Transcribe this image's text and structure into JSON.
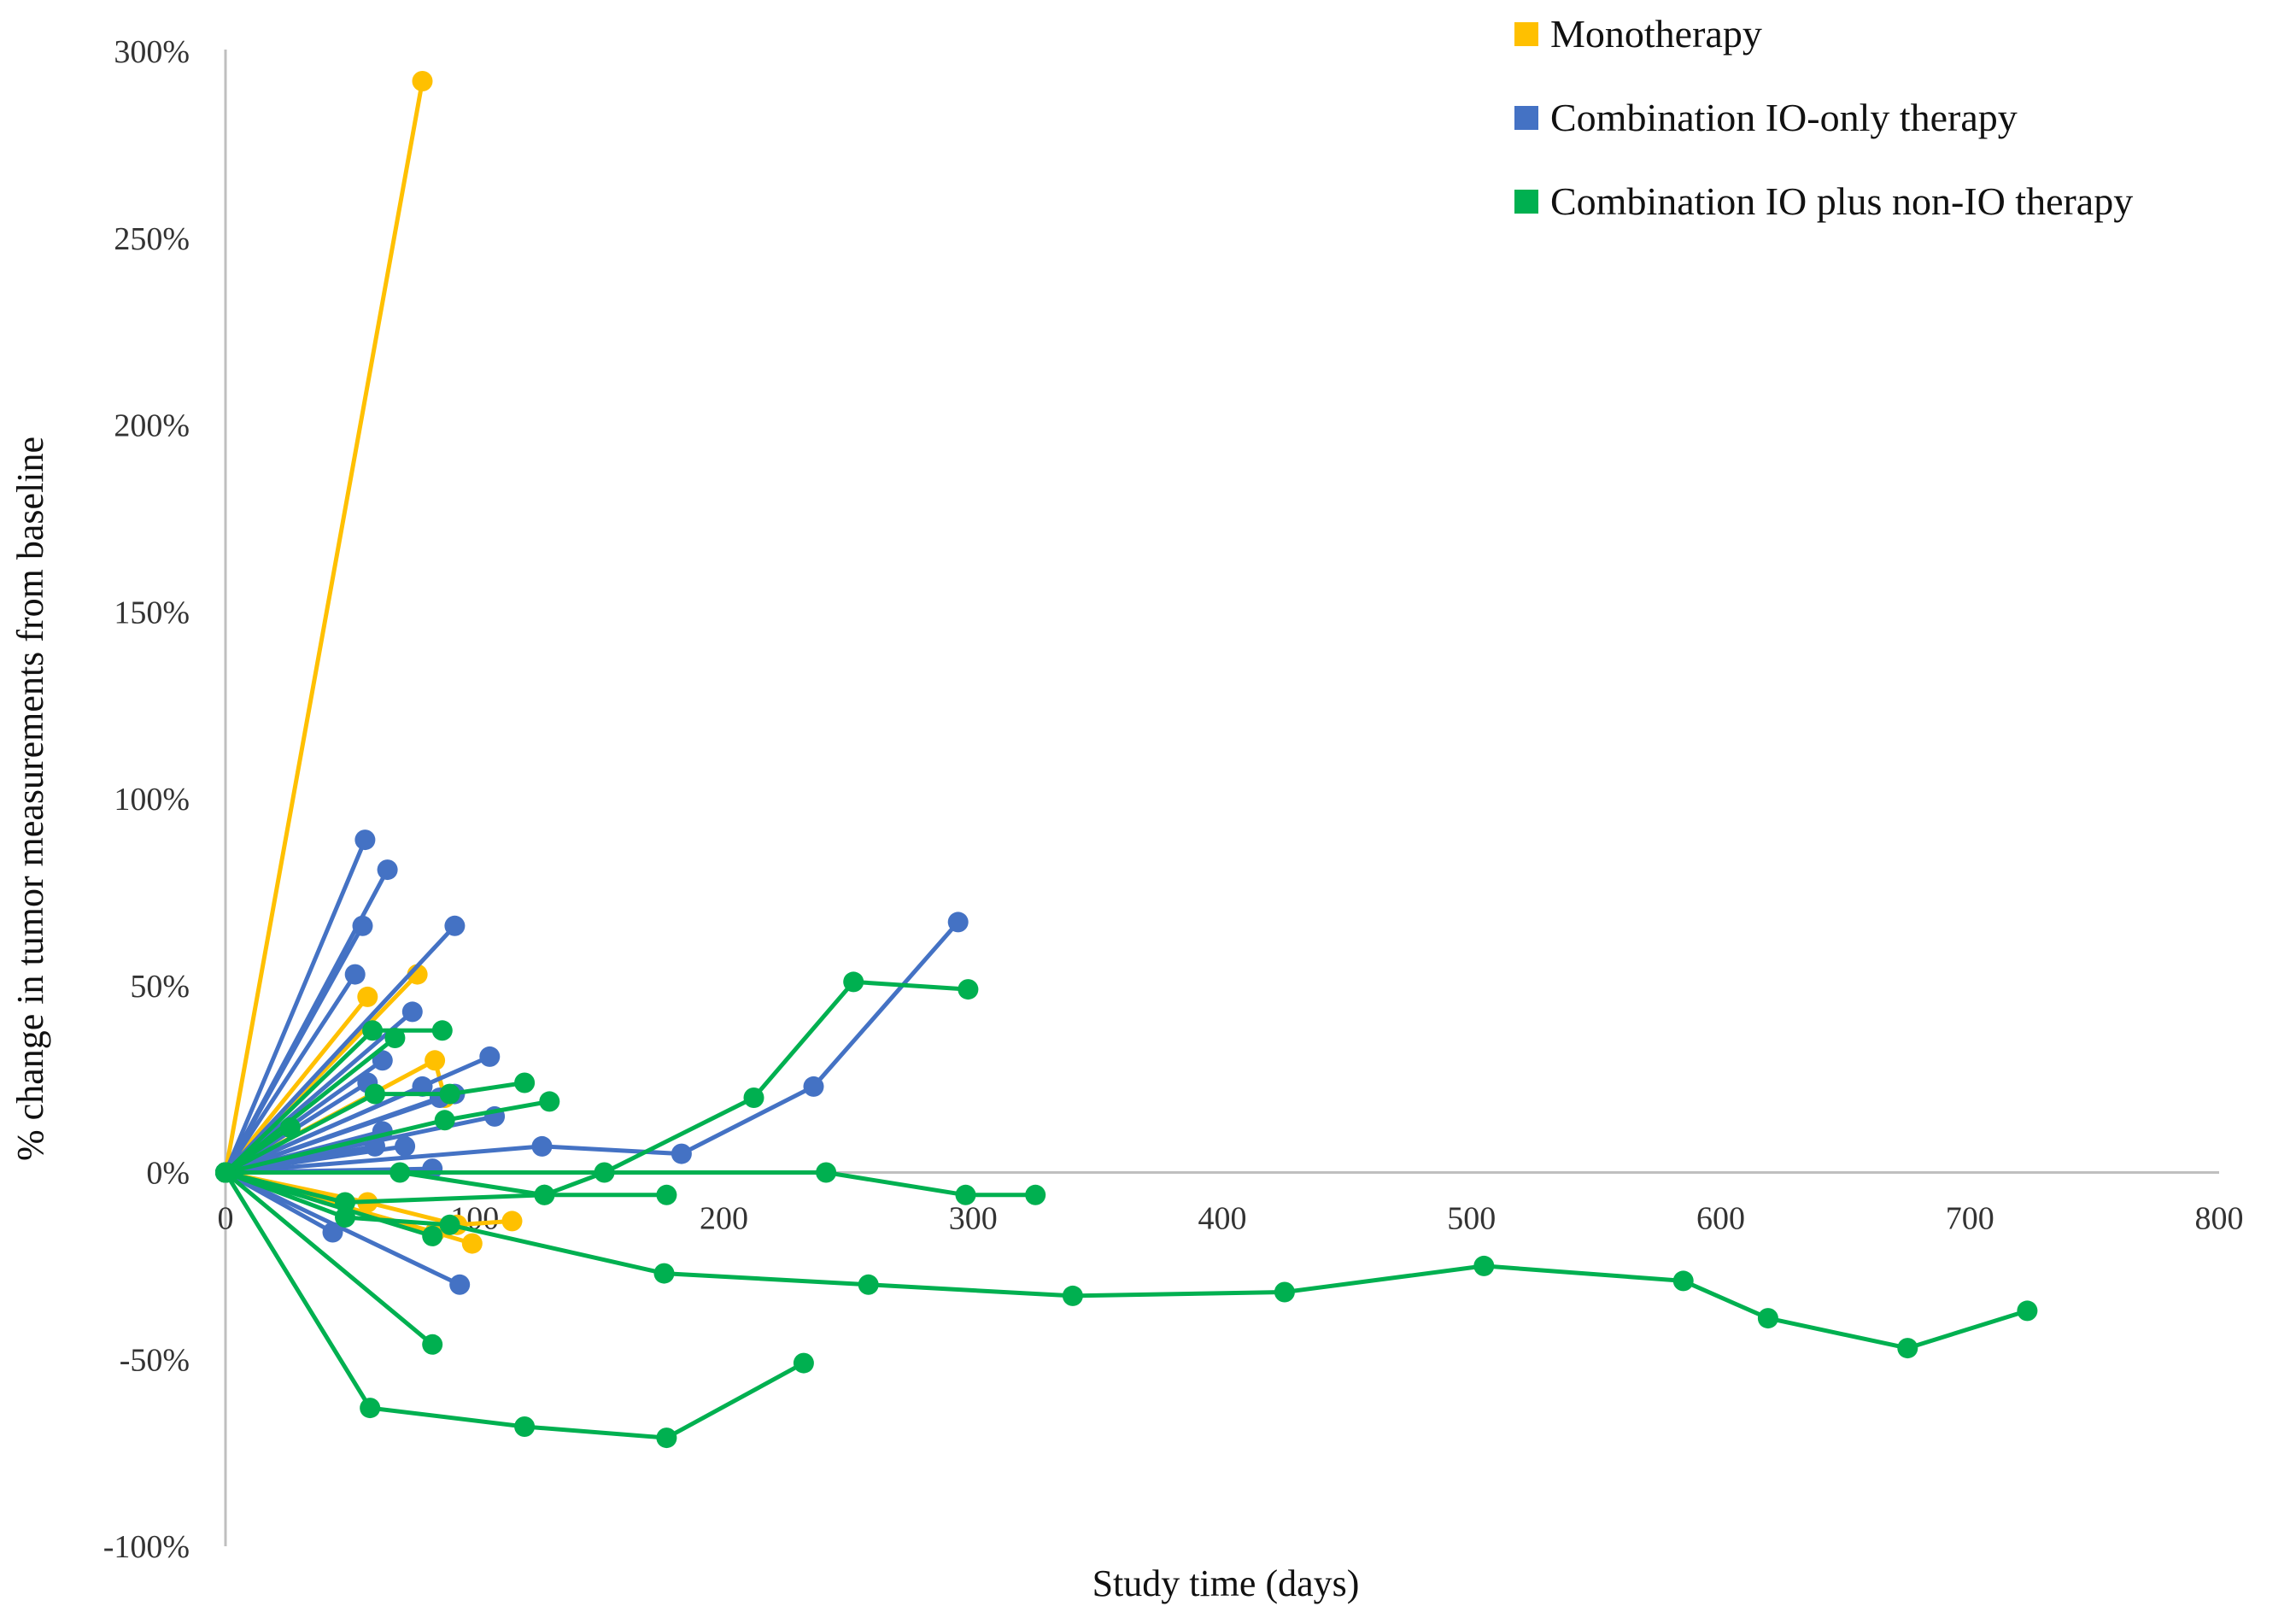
{
  "chart_data": {
    "type": "line",
    "title": "",
    "xlabel": "Study time (days)",
    "ylabel": "% change in tumor measurements from baseline",
    "xlim": [
      0,
      800
    ],
    "ylim": [
      -100,
      300
    ],
    "x_ticks": [
      0,
      100,
      200,
      300,
      400,
      500,
      600,
      700,
      800
    ],
    "y_ticks": [
      300,
      250,
      200,
      150,
      100,
      50,
      0,
      -50,
      -100
    ],
    "y_tick_labels": [
      "300%",
      "250%",
      "200%",
      "150%",
      "100%",
      "50%",
      "0%",
      "-50%",
      "-100%"
    ],
    "grid": false,
    "legend": "top-right",
    "groups": [
      {
        "name": "Monotherapy",
        "color": "#FFC000",
        "series": [
          {
            "points": [
              [
                0,
                0
              ],
              [
                79,
                292
              ]
            ]
          },
          {
            "points": [
              [
                0,
                0
              ],
              [
                77,
                53
              ]
            ]
          },
          {
            "points": [
              [
                0,
                0
              ],
              [
                57,
                47
              ]
            ]
          },
          {
            "points": [
              [
                0,
                0
              ],
              [
                84,
                30
              ],
              [
                88,
                20
              ]
            ]
          },
          {
            "points": [
              [
                0,
                0
              ],
              [
                57,
                -8
              ],
              [
                93,
                -14
              ],
              [
                115,
                -13
              ]
            ]
          },
          {
            "points": [
              [
                0,
                0
              ],
              [
                84,
                -16
              ],
              [
                99,
                -19
              ]
            ]
          }
        ]
      },
      {
        "name": "Combination IO-only therapy",
        "color": "#4472C4",
        "series": [
          {
            "points": [
              [
                0,
                0
              ],
              [
                56,
                89
              ]
            ]
          },
          {
            "points": [
              [
                0,
                0
              ],
              [
                65,
                81
              ]
            ]
          },
          {
            "points": [
              [
                0,
                0
              ],
              [
                55,
                66
              ]
            ]
          },
          {
            "points": [
              [
                0,
                0
              ],
              [
                92,
                66
              ]
            ]
          },
          {
            "points": [
              [
                0,
                0
              ],
              [
                52,
                53
              ]
            ]
          },
          {
            "points": [
              [
                0,
                0
              ],
              [
                75,
                43
              ]
            ]
          },
          {
            "points": [
              [
                0,
                0
              ],
              [
                106,
                31
              ]
            ]
          },
          {
            "points": [
              [
                0,
                0
              ],
              [
                63,
                30
              ]
            ]
          },
          {
            "points": [
              [
                0,
                0
              ],
              [
                57,
                24
              ]
            ]
          },
          {
            "points": [
              [
                0,
                0
              ],
              [
                79,
                23
              ]
            ]
          },
          {
            "points": [
              [
                0,
                0
              ],
              [
                92,
                21
              ]
            ]
          },
          {
            "points": [
              [
                0,
                0
              ],
              [
                86,
                20
              ]
            ]
          },
          {
            "points": [
              [
                0,
                0
              ],
              [
                108,
                15
              ]
            ]
          },
          {
            "points": [
              [
                0,
                0
              ],
              [
                63,
                11
              ]
            ]
          },
          {
            "points": [
              [
                0,
                0
              ],
              [
                60,
                7
              ]
            ]
          },
          {
            "points": [
              [
                0,
                0
              ],
              [
                72,
                7
              ]
            ]
          },
          {
            "points": [
              [
                0,
                0
              ],
              [
                127,
                7
              ],
              [
                183,
                5
              ],
              [
                236,
                23
              ],
              [
                294,
                67
              ]
            ]
          },
          {
            "points": [
              [
                0,
                0
              ],
              [
                83,
                1
              ]
            ]
          },
          {
            "points": [
              [
                0,
                0
              ],
              [
                43,
                -16
              ]
            ]
          },
          {
            "points": [
              [
                0,
                0
              ],
              [
                94,
                -30
              ]
            ]
          }
        ]
      },
      {
        "name": "Combination IO plus non-IO therapy",
        "color": "#00B050",
        "series": [
          {
            "points": [
              [
                0,
                0
              ],
              [
                59,
                38
              ],
              [
                87,
                38
              ]
            ]
          },
          {
            "points": [
              [
                0,
                0
              ],
              [
                68,
                36
              ]
            ]
          },
          {
            "points": [
              [
                0,
                0
              ],
              [
                60,
                21
              ],
              [
                90,
                21
              ],
              [
                120,
                24
              ]
            ]
          },
          {
            "points": [
              [
                0,
                0
              ],
              [
                88,
                14
              ],
              [
                130,
                19
              ]
            ]
          },
          {
            "points": [
              [
                0,
                0
              ],
              [
                26,
                12
              ]
            ]
          },
          {
            "points": [
              [
                0,
                0
              ],
              [
                70,
                0
              ],
              [
                128,
                -6
              ],
              [
                177,
                -6
              ]
            ]
          },
          {
            "points": [
              [
                0,
                0
              ],
              [
                48,
                -8
              ],
              [
                128,
                -6
              ],
              [
                152,
                0
              ],
              [
                212,
                20
              ],
              [
                252,
                51
              ],
              [
                298,
                49
              ]
            ]
          },
          {
            "points": [
              [
                0,
                0
              ],
              [
                241,
                0
              ],
              [
                297,
                -6
              ],
              [
                325,
                -6
              ]
            ]
          },
          {
            "points": [
              [
                0,
                0
              ],
              [
                48,
                -12
              ],
              [
                90,
                -14
              ],
              [
                176,
                -27
              ],
              [
                258,
                -30
              ],
              [
                340,
                -33
              ],
              [
                425,
                -32
              ],
              [
                505,
                -25
              ],
              [
                585,
                -29
              ],
              [
                619,
                -39
              ],
              [
                675,
                -47
              ],
              [
                723,
                -37
              ]
            ]
          },
          {
            "points": [
              [
                0,
                0
              ],
              [
                83,
                -17
              ]
            ]
          },
          {
            "points": [
              [
                0,
                0
              ],
              [
                83,
                -46
              ]
            ]
          },
          {
            "points": [
              [
                0,
                0
              ],
              [
                58,
                -63
              ],
              [
                120,
                -68
              ],
              [
                177,
                -71
              ],
              [
                232,
                -51
              ]
            ]
          }
        ]
      }
    ]
  }
}
